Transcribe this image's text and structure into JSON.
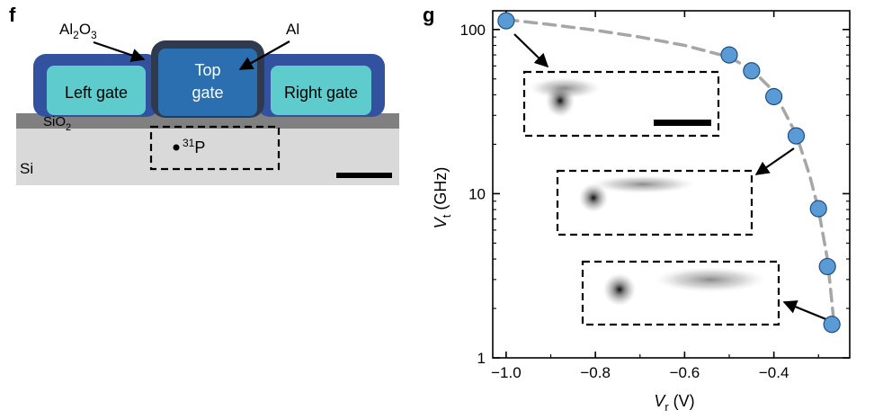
{
  "panel_f": {
    "label": "f",
    "layers": {
      "al2o3": {
        "base": "Al",
        "sub": "2",
        "mid": "O",
        "sub2": "3"
      },
      "al": "Al",
      "sio2": {
        "base": "SiO",
        "sub": "2"
      },
      "si": "Si"
    },
    "gates": {
      "left": "Left gate",
      "top_line1": "Top",
      "top_line2": "gate",
      "right": "Right gate"
    },
    "donor": {
      "sup": "31",
      "base": "P"
    },
    "colors": {
      "al2o3": "#3252a0",
      "top_gate": "#2c6fb0",
      "side_gate": "#5ecccc",
      "sio2": "#808080",
      "si": "#d9d9d9"
    }
  },
  "panel_g": {
    "label": "g"
  },
  "chart_data": {
    "type": "scatter",
    "xlabel": {
      "base": "V",
      "sub": "r",
      "unit": " (V)"
    },
    "ylabel": {
      "base": "V",
      "sub": "t",
      "unit": " (GHz)"
    },
    "xlim": [
      -1.03,
      -0.23
    ],
    "ylim": [
      1,
      130
    ],
    "yscale": "log",
    "xticks": [
      -1.0,
      -0.8,
      -0.6,
      -0.4
    ],
    "xtick_labels": [
      "−1.0",
      "−0.8",
      "−0.6",
      "−0.4"
    ],
    "yticks": [
      1,
      10,
      100
    ],
    "ytick_labels": [
      "1",
      "10",
      "100"
    ],
    "points": [
      {
        "x": -1.0,
        "y": 113
      },
      {
        "x": -0.5,
        "y": 70
      },
      {
        "x": -0.45,
        "y": 56
      },
      {
        "x": -0.4,
        "y": 39
      },
      {
        "x": -0.35,
        "y": 22.5
      },
      {
        "x": -0.3,
        "y": 8.1
      },
      {
        "x": -0.28,
        "y": 3.6
      },
      {
        "x": -0.27,
        "y": 1.6
      }
    ],
    "fit_curve": [
      {
        "x": -1.0,
        "y": 115
      },
      {
        "x": -0.9,
        "y": 107
      },
      {
        "x": -0.8,
        "y": 99
      },
      {
        "x": -0.7,
        "y": 90
      },
      {
        "x": -0.6,
        "y": 80
      },
      {
        "x": -0.5,
        "y": 68
      },
      {
        "x": -0.45,
        "y": 57
      },
      {
        "x": -0.4,
        "y": 42
      },
      {
        "x": -0.35,
        "y": 23
      },
      {
        "x": -0.32,
        "y": 13
      },
      {
        "x": -0.3,
        "y": 8
      },
      {
        "x": -0.28,
        "y": 4
      },
      {
        "x": -0.27,
        "y": 2.2
      },
      {
        "x": -0.265,
        "y": 1.6
      }
    ],
    "marker_color": "#5b9bd5",
    "curve_color": "#a6a6a6",
    "grid": false,
    "legend": "none"
  }
}
